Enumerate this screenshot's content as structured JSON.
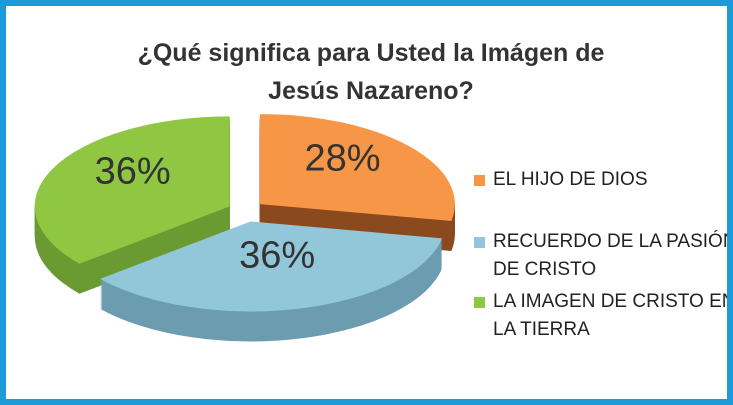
{
  "chart_data": {
    "type": "pie3d",
    "title": "¿Qué significa para Usted la Imágen de Jesús Nazareno?",
    "categories": [
      "EL HIJO DE DIOS",
      "RECUERDO DE LA PASIÓN DE CRISTO",
      "LA IMAGEN DE CRISTO EN LA TIERRA"
    ],
    "values": [
      28,
      36,
      36
    ],
    "value_labels": [
      "28%",
      "36%",
      "36%"
    ],
    "colors": [
      "#f79646",
      "#92c7da",
      "#8fc743"
    ],
    "side_colors": [
      "#8a4a1e",
      "#6c9cb0",
      "#6a9a32"
    ],
    "legend": "right"
  }
}
